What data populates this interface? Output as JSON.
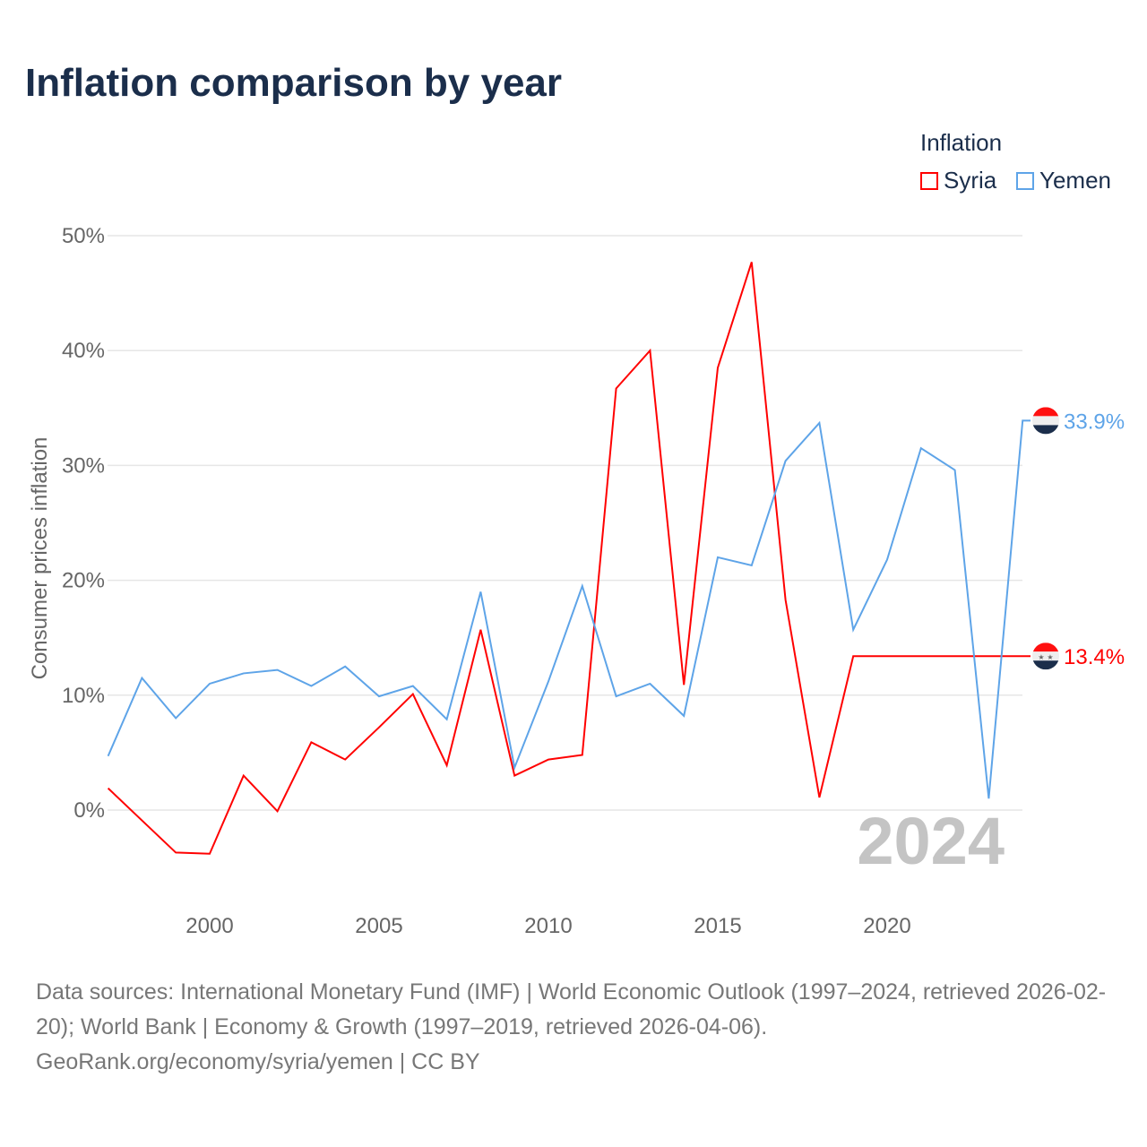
{
  "chart_data": {
    "type": "line",
    "title": "Inflation comparison by year",
    "xlabel": "",
    "ylabel": "Consumer prices inflation",
    "xlim": [
      1997,
      2024
    ],
    "ylim": [
      -8,
      50
    ],
    "yticks": [
      0,
      10,
      20,
      30,
      40,
      50
    ],
    "ytick_labels": [
      "0%",
      "10%",
      "20%",
      "30%",
      "40%",
      "50%"
    ],
    "xticks": [
      2000,
      2005,
      2010,
      2015,
      2020
    ],
    "xtick_labels": [
      "2000",
      "2005",
      "2010",
      "2015",
      "2020"
    ],
    "grid": true,
    "legend_title": "Inflation",
    "legend_position": "top-right",
    "year_watermark": "2024",
    "series": [
      {
        "name": "Syria",
        "color": "#ff0000",
        "end_label": "13.4%",
        "x": [
          1997,
          1998,
          1999,
          2000,
          2001,
          2002,
          2003,
          2004,
          2005,
          2006,
          2007,
          2008,
          2009,
          2010,
          2011,
          2012,
          2013,
          2014,
          2015,
          2016,
          2017,
          2018,
          2019
        ],
        "values": [
          1.9,
          -0.9,
          -3.7,
          -3.8,
          3.0,
          -0.1,
          5.9,
          4.4,
          7.2,
          10.1,
          3.9,
          15.7,
          3.0,
          4.4,
          4.8,
          36.7,
          40.0,
          10.9,
          38.5,
          47.7,
          18.3,
          1.1,
          13.4
        ]
      },
      {
        "name": "Yemen",
        "color": "#5ea4e8",
        "end_label": "33.9%",
        "x": [
          1997,
          1998,
          1999,
          2000,
          2001,
          2002,
          2003,
          2004,
          2005,
          2006,
          2007,
          2008,
          2009,
          2010,
          2011,
          2012,
          2013,
          2014,
          2015,
          2016,
          2017,
          2018,
          2019,
          2020,
          2021,
          2022,
          2023,
          2024
        ],
        "values": [
          4.7,
          11.5,
          8.0,
          11.0,
          11.9,
          12.2,
          10.8,
          12.5,
          9.9,
          10.8,
          7.9,
          19.0,
          3.7,
          11.2,
          19.5,
          9.9,
          11.0,
          8.2,
          22.0,
          21.3,
          30.4,
          33.7,
          15.7,
          21.8,
          31.5,
          29.6,
          1.0,
          33.9
        ]
      }
    ]
  },
  "source": {
    "line1": "Data sources: International Monetary Fund (IMF) | World Economic Outlook (1997–2024, retrieved 2026-02-20); World Bank | Economy & Growth (1997–2019, retrieved 2026-04-06).",
    "line2": "GeoRank.org/economy/syria/yemen | CC BY"
  }
}
